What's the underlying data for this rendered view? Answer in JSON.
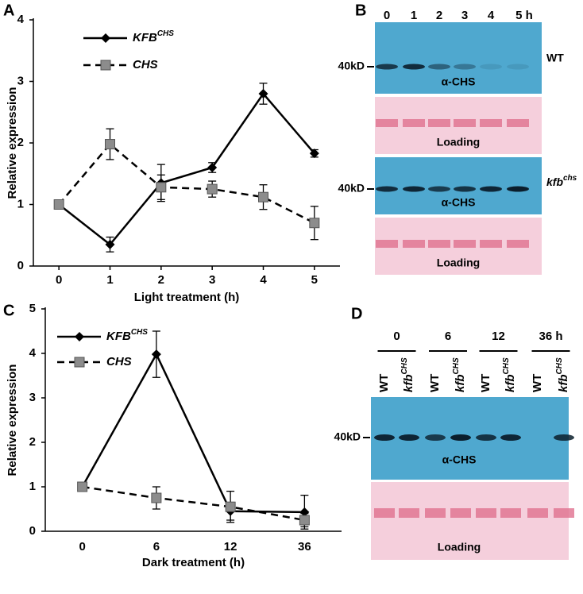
{
  "panel_labels": [
    "A",
    "B",
    "C",
    "D"
  ],
  "chart_data": [
    {
      "type": "line",
      "x_label": "Light treatment (h)",
      "y_label": "Relative expression",
      "x": [
        0,
        1,
        2,
        3,
        4,
        5
      ],
      "xlim": [
        -0.5,
        5.5
      ],
      "xticks": [
        0,
        1,
        2,
        3,
        4,
        5
      ],
      "ylim": [
        0,
        4
      ],
      "yticks": [
        0,
        1,
        2,
        3,
        4
      ],
      "series": [
        {
          "name": "KFB",
          "name_superscript": "CHS",
          "color": "#000000",
          "marker": "diamond",
          "dashed": false,
          "values": [
            1,
            0.35,
            1.35,
            1.6,
            2.8,
            1.83
          ],
          "errors": [
            0,
            0.12,
            0.3,
            0.08,
            0.17,
            0.06
          ]
        },
        {
          "name": "CHS",
          "color": "#000000",
          "marker_color": "#8c8c8c",
          "marker": "square",
          "dashed": true,
          "values": [
            1,
            1.98,
            1.28,
            1.25,
            1.12,
            0.7
          ],
          "errors": [
            0,
            0.25,
            0.2,
            0.13,
            0.2,
            0.27
          ]
        }
      ]
    },
    {
      "type": "line",
      "x_label": "Dark treatment (h)",
      "y_label": "Relative expression",
      "categories": [
        "0",
        "6",
        "12",
        "36"
      ],
      "ylim": [
        0,
        5
      ],
      "yticks": [
        0,
        1,
        2,
        3,
        4,
        5
      ],
      "series": [
        {
          "name": "KFB",
          "name_superscript": "CHS",
          "color": "#000000",
          "marker": "diamond",
          "dashed": false,
          "values": [
            1,
            3.98,
            0.45,
            0.43
          ],
          "errors": [
            0,
            0.52,
            0.2,
            0.38
          ]
        },
        {
          "name": "CHS",
          "color": "#000000",
          "marker_color": "#8c8c8c",
          "marker": "square",
          "dashed": true,
          "values": [
            1,
            0.75,
            0.55,
            0.25
          ],
          "errors": [
            0,
            0.25,
            0.35,
            0.15
          ]
        }
      ]
    }
  ],
  "blot_b": {
    "time_labels": [
      "0",
      "1",
      "2",
      "3",
      "4",
      "5 h"
    ],
    "size_marker": "40kD",
    "antibody": "α-CHS",
    "loading": "Loading",
    "wt": "WT",
    "mutant": "kfb",
    "mutant_superscript": "chs"
  },
  "blot_d": {
    "time_labels": [
      "0",
      "6",
      "12",
      "36 h"
    ],
    "wt": "WT",
    "mutant": "kfb",
    "mutant_superscript": "CHS",
    "size_marker": "40kD",
    "antibody": "α-CHS",
    "loading": "Loading"
  }
}
